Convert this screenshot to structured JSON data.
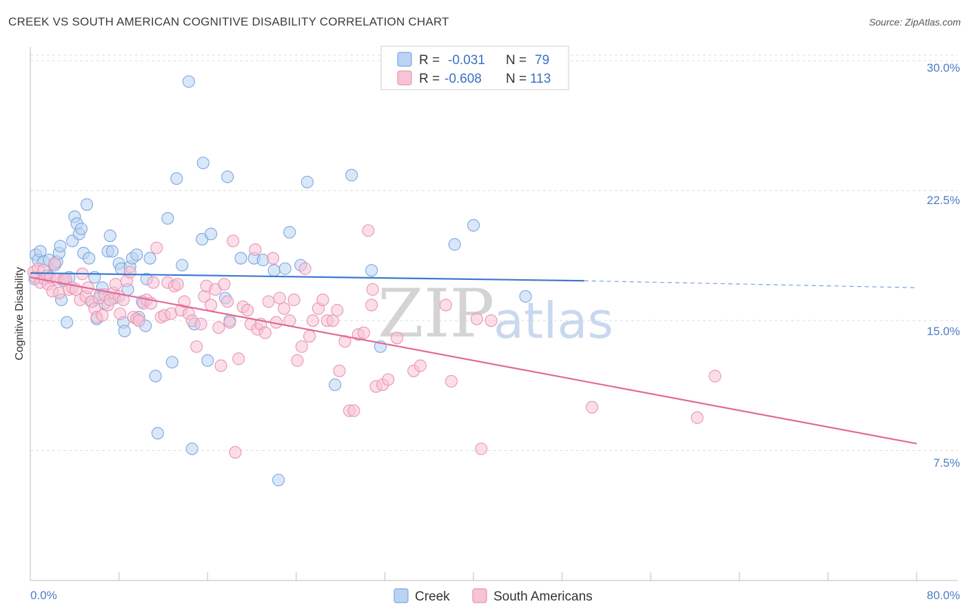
{
  "title": "CREEK VS SOUTH AMERICAN COGNITIVE DISABILITY CORRELATION CHART",
  "source": "Source: ZipAtlas.com",
  "watermark": {
    "zip": "ZIP",
    "atlas": "atlas"
  },
  "legend_top": [
    {
      "r_label": "R =",
      "r_value": "-0.031",
      "n_label": "N =",
      "n_value": "79",
      "fill": "#b9d3f3",
      "stroke": "#7aa6e0"
    },
    {
      "r_label": "R =",
      "r_value": "-0.608",
      "n_label": "N =",
      "n_value": "113",
      "fill": "#f7c3d5",
      "stroke": "#e894b2"
    }
  ],
  "legend_bottom": [
    {
      "label": "Creek",
      "fill": "#b9d3f3",
      "stroke": "#7aa6e0"
    },
    {
      "label": "South Americans",
      "fill": "#f7c3d5",
      "stroke": "#e894b2"
    }
  ],
  "axis": {
    "ylabel": "Cognitive Disability",
    "x_min_label": "0.0%",
    "x_max_label": "80.0%",
    "y_tick_labels": [
      "30.0%",
      "22.5%",
      "15.0%",
      "7.5%"
    ]
  },
  "chart_data": {
    "type": "scatter",
    "title": "CREEK VS SOUTH AMERICAN COGNITIVE DISABILITY CORRELATION CHART",
    "xlabel": "",
    "ylabel": "Cognitive Disability",
    "xlim": [
      0,
      80
    ],
    "ylim": [
      0,
      30.8
    ],
    "y_ticks": [
      7.5,
      15.0,
      22.5,
      30.0
    ],
    "grid": true,
    "legend": "top-center",
    "series": [
      {
        "name": "Creek",
        "color": "#7aa6e0",
        "fill": "#b9d3f3",
        "trend": {
          "x": [
            0,
            50
          ],
          "y": [
            17.75,
            17.3
          ],
          "dashed_to": [
            80,
            16.9
          ],
          "color": "#3a78d0"
        },
        "points": [
          [
            0.4,
            17.4
          ],
          [
            0.5,
            18.8
          ],
          [
            0.7,
            18.5
          ],
          [
            0.9,
            19.0
          ],
          [
            1.2,
            18.4
          ],
          [
            1.5,
            17.6
          ],
          [
            1.6,
            17.6
          ],
          [
            1.7,
            18.5
          ],
          [
            2.2,
            18.2
          ],
          [
            2.4,
            18.4
          ],
          [
            2.6,
            18.9
          ],
          [
            2.7,
            19.3
          ],
          [
            2.8,
            16.2
          ],
          [
            3.0,
            17.3
          ],
          [
            3.3,
            14.9
          ],
          [
            3.5,
            17.5
          ],
          [
            3.8,
            19.6
          ],
          [
            4.0,
            21.0
          ],
          [
            4.2,
            20.6
          ],
          [
            4.4,
            20.0
          ],
          [
            4.6,
            20.3
          ],
          [
            4.8,
            18.9
          ],
          [
            5.1,
            21.7
          ],
          [
            5.3,
            18.6
          ],
          [
            5.6,
            16.1
          ],
          [
            5.8,
            17.5
          ],
          [
            6.0,
            15.1
          ],
          [
            6.3,
            16.5
          ],
          [
            6.5,
            16.9
          ],
          [
            6.7,
            16.0
          ],
          [
            7.0,
            19.0
          ],
          [
            7.2,
            19.9
          ],
          [
            7.4,
            19.0
          ],
          [
            7.6,
            16.3
          ],
          [
            8.0,
            18.3
          ],
          [
            8.2,
            18.0
          ],
          [
            8.4,
            14.9
          ],
          [
            8.5,
            14.4
          ],
          [
            8.8,
            16.8
          ],
          [
            9.0,
            18.1
          ],
          [
            9.2,
            18.6
          ],
          [
            9.6,
            18.8
          ],
          [
            9.8,
            15.2
          ],
          [
            10.1,
            16.1
          ],
          [
            10.4,
            14.7
          ],
          [
            10.5,
            17.4
          ],
          [
            10.8,
            18.6
          ],
          [
            11.3,
            11.8
          ],
          [
            11.5,
            8.5
          ],
          [
            12.4,
            20.9
          ],
          [
            12.8,
            12.6
          ],
          [
            13.2,
            23.2
          ],
          [
            13.7,
            18.2
          ],
          [
            14.3,
            28.8
          ],
          [
            14.6,
            7.6
          ],
          [
            14.8,
            14.8
          ],
          [
            15.5,
            19.7
          ],
          [
            15.6,
            24.1
          ],
          [
            16.0,
            12.7
          ],
          [
            16.3,
            20.0
          ],
          [
            17.6,
            16.3
          ],
          [
            17.8,
            23.3
          ],
          [
            18.0,
            15.0
          ],
          [
            19.0,
            18.6
          ],
          [
            20.2,
            18.6
          ],
          [
            21.0,
            18.5
          ],
          [
            22.0,
            17.9
          ],
          [
            22.4,
            5.8
          ],
          [
            23.0,
            18.0
          ],
          [
            23.4,
            20.1
          ],
          [
            24.4,
            18.2
          ],
          [
            25.0,
            23.0
          ],
          [
            27.5,
            11.3
          ],
          [
            29.0,
            23.4
          ],
          [
            30.8,
            17.9
          ],
          [
            31.6,
            13.5
          ],
          [
            38.3,
            19.4
          ],
          [
            40.0,
            20.5
          ],
          [
            44.7,
            16.4
          ]
        ]
      },
      {
        "name": "South Americans",
        "color": "#e894b2",
        "fill": "#f7c3d5",
        "trend": {
          "x": [
            0,
            80
          ],
          "y": [
            17.5,
            7.9
          ],
          "color": "#e06898"
        },
        "points": [
          [
            0.3,
            17.8
          ],
          [
            0.5,
            17.5
          ],
          [
            0.7,
            18.0
          ],
          [
            0.9,
            17.2
          ],
          [
            1.2,
            17.9
          ],
          [
            1.3,
            17.4
          ],
          [
            1.6,
            17.1
          ],
          [
            1.8,
            17.5
          ],
          [
            2.0,
            16.7
          ],
          [
            2.2,
            18.3
          ],
          [
            2.4,
            17.4
          ],
          [
            2.6,
            16.6
          ],
          [
            3.0,
            17.4
          ],
          [
            3.2,
            17.4
          ],
          [
            3.5,
            16.8
          ],
          [
            3.8,
            16.9
          ],
          [
            4.1,
            16.8
          ],
          [
            4.5,
            16.2
          ],
          [
            4.7,
            17.7
          ],
          [
            5.0,
            16.4
          ],
          [
            5.2,
            16.9
          ],
          [
            5.5,
            16.1
          ],
          [
            5.8,
            15.7
          ],
          [
            6.0,
            15.2
          ],
          [
            6.2,
            16.3
          ],
          [
            6.5,
            15.3
          ],
          [
            6.7,
            16.5
          ],
          [
            7.0,
            15.9
          ],
          [
            7.2,
            16.2
          ],
          [
            7.5,
            16.6
          ],
          [
            7.7,
            17.1
          ],
          [
            8.0,
            16.4
          ],
          [
            8.1,
            15.4
          ],
          [
            8.4,
            16.2
          ],
          [
            8.7,
            17.3
          ],
          [
            9.0,
            17.8
          ],
          [
            9.3,
            15.2
          ],
          [
            9.6,
            15.1
          ],
          [
            9.8,
            15.0
          ],
          [
            10.2,
            16.0
          ],
          [
            10.5,
            16.2
          ],
          [
            10.9,
            16.0
          ],
          [
            11.1,
            17.2
          ],
          [
            11.4,
            19.2
          ],
          [
            11.8,
            15.2
          ],
          [
            12.1,
            15.3
          ],
          [
            12.4,
            17.2
          ],
          [
            12.7,
            15.4
          ],
          [
            13.0,
            17.0
          ],
          [
            13.3,
            17.1
          ],
          [
            13.6,
            15.6
          ],
          [
            13.9,
            16.1
          ],
          [
            14.3,
            15.4
          ],
          [
            14.6,
            15.0
          ],
          [
            15.0,
            13.5
          ],
          [
            15.4,
            14.8
          ],
          [
            15.7,
            16.4
          ],
          [
            15.9,
            17.0
          ],
          [
            16.3,
            15.9
          ],
          [
            16.7,
            16.8
          ],
          [
            17.0,
            14.6
          ],
          [
            17.2,
            12.4
          ],
          [
            17.5,
            17.1
          ],
          [
            17.8,
            16.1
          ],
          [
            18.0,
            14.9
          ],
          [
            18.3,
            19.6
          ],
          [
            18.5,
            7.4
          ],
          [
            18.8,
            12.8
          ],
          [
            19.2,
            15.8
          ],
          [
            19.6,
            15.6
          ],
          [
            19.9,
            14.8
          ],
          [
            20.3,
            19.1
          ],
          [
            20.5,
            14.5
          ],
          [
            20.8,
            14.8
          ],
          [
            21.2,
            14.3
          ],
          [
            21.5,
            16.1
          ],
          [
            21.9,
            18.6
          ],
          [
            22.2,
            14.9
          ],
          [
            22.5,
            16.3
          ],
          [
            22.9,
            15.7
          ],
          [
            23.4,
            15.0
          ],
          [
            23.8,
            16.2
          ],
          [
            24.1,
            12.7
          ],
          [
            24.5,
            13.5
          ],
          [
            24.8,
            18.0
          ],
          [
            25.2,
            14.1
          ],
          [
            25.5,
            15.0
          ],
          [
            26.0,
            15.7
          ],
          [
            26.4,
            16.2
          ],
          [
            26.8,
            15.0
          ],
          [
            27.3,
            15.0
          ],
          [
            27.7,
            15.6
          ],
          [
            27.9,
            12.1
          ],
          [
            28.4,
            13.8
          ],
          [
            28.8,
            9.8
          ],
          [
            29.2,
            9.8
          ],
          [
            29.6,
            14.2
          ],
          [
            30.1,
            14.3
          ],
          [
            30.5,
            20.2
          ],
          [
            30.8,
            15.9
          ],
          [
            31.2,
            11.2
          ],
          [
            31.8,
            11.3
          ],
          [
            32.3,
            11.6
          ],
          [
            33.1,
            14.0
          ],
          [
            34.6,
            12.1
          ],
          [
            35.2,
            12.4
          ],
          [
            37.5,
            15.9
          ],
          [
            38.0,
            11.5
          ],
          [
            40.3,
            15.1
          ],
          [
            40.7,
            7.6
          ],
          [
            41.6,
            15.0
          ],
          [
            50.7,
            10.0
          ],
          [
            60.2,
            9.4
          ],
          [
            61.8,
            11.8
          ],
          [
            30.9,
            16.8
          ]
        ]
      }
    ]
  }
}
